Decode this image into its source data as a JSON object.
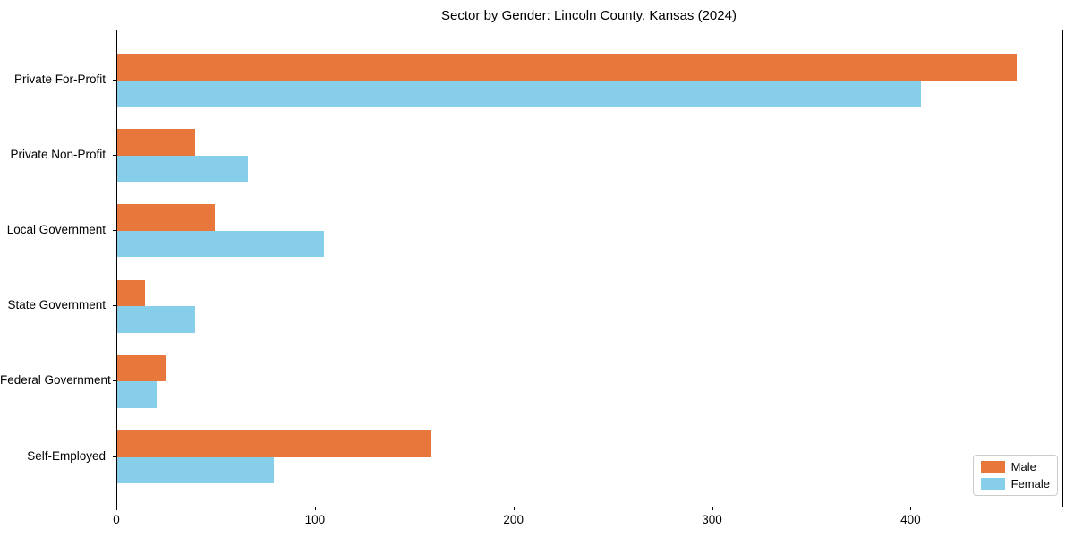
{
  "chart_data": {
    "type": "bar",
    "orientation": "horizontal",
    "title": "Sector by Gender: Lincoln County, Kansas (2024)",
    "categories": [
      "Private For-Profit",
      "Private Non-Profit",
      "Local Government",
      "State Government",
      "Federal Government",
      "Self-Employed"
    ],
    "series": [
      {
        "name": "Male",
        "color": "#e8773b",
        "values": [
          453,
          39,
          49,
          14,
          25,
          158
        ]
      },
      {
        "name": "Female",
        "color": "#87ceeb",
        "values": [
          405,
          66,
          104,
          39,
          20,
          79
        ]
      }
    ],
    "xlabel": "",
    "ylabel": "",
    "xlim": [
      0,
      476
    ],
    "x_ticks": [
      0,
      100,
      200,
      300,
      400
    ],
    "grid": false,
    "legend_position": "lower right",
    "colors": {
      "background": "#ffffff",
      "axis": "#000000",
      "text": "#000000",
      "legend_border": "#cccccc"
    }
  }
}
